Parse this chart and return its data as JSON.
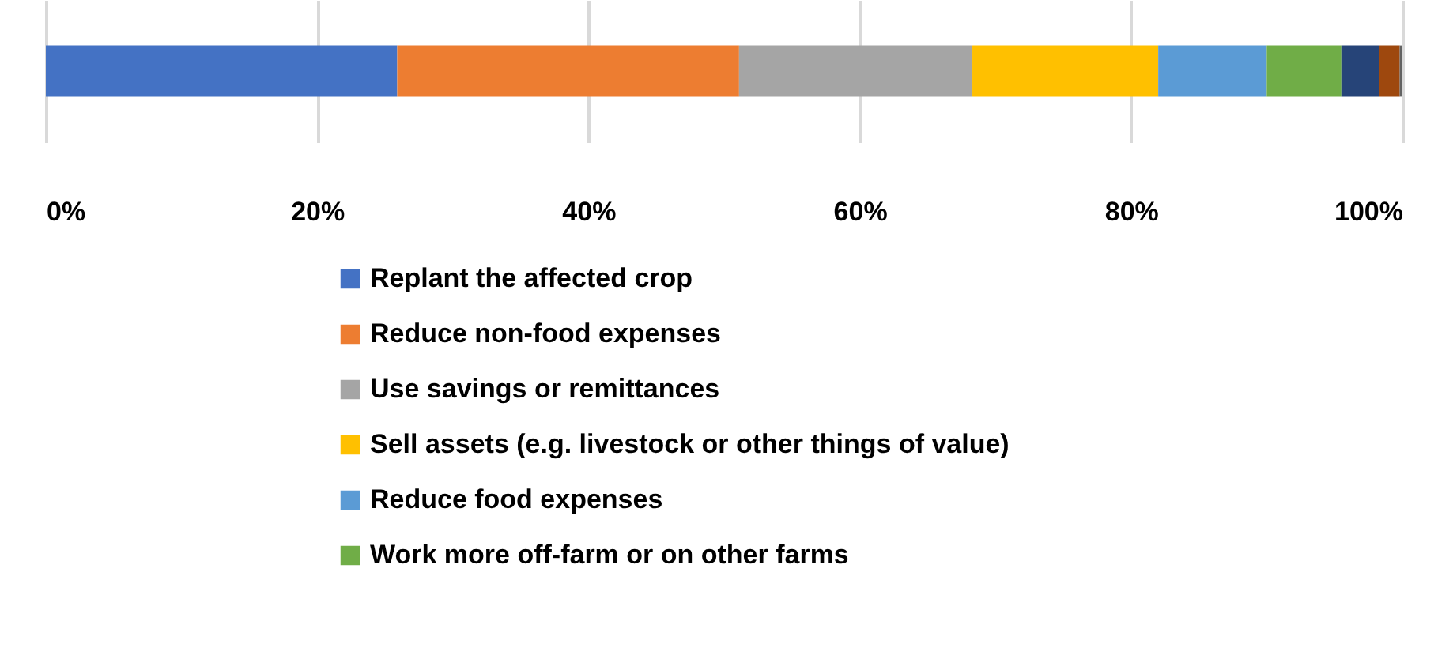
{
  "chart_data": {
    "type": "bar",
    "orientation": "horizontal",
    "stacked": true,
    "categories": [
      null
    ],
    "series": [
      {
        "name": "Replant the affected crop",
        "color": "#4472c4",
        "values": [
          25.9
        ]
      },
      {
        "name": "Reduce non-food expenses",
        "color": "#ed7d31",
        "values": [
          25.2
        ]
      },
      {
        "name": "Use savings or remittances",
        "color": "#a5a5a5",
        "values": [
          17.2
        ]
      },
      {
        "name": "Sell assets (e.g. livestock or other things of value)",
        "color": "#ffc000",
        "values": [
          13.7
        ]
      },
      {
        "name": "Reduce food expenses",
        "color": "#5b9bd5",
        "values": [
          8.0
        ]
      },
      {
        "name": "Work more off-farm or on other farms",
        "color": "#70ad47",
        "values": [
          5.5
        ]
      },
      {
        "color": "#264478",
        "values": [
          2.8
        ]
      },
      {
        "color": "#9e480e",
        "values": [
          1.5
        ]
      },
      {
        "color": "#636363",
        "values": [
          0.2
        ]
      }
    ],
    "xlim": [
      0,
      100
    ],
    "xticks": [
      {
        "value": 0,
        "label": "0%"
      },
      {
        "value": 20,
        "label": "20%"
      },
      {
        "value": 40,
        "label": "40%"
      },
      {
        "value": 60,
        "label": "60%"
      },
      {
        "value": 80,
        "label": "80%"
      },
      {
        "value": 100,
        "label": "100%"
      }
    ],
    "grid": "x",
    "legend": "bottom"
  }
}
